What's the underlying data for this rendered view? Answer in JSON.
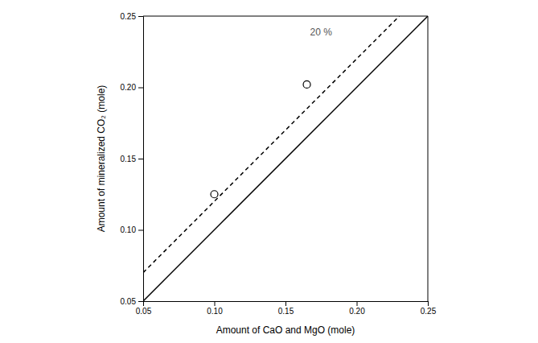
{
  "chart_data": {
    "type": "scatter",
    "xlabel": "Amount of CaO and MgO (mole)",
    "ylabel": "Amount of mineralized CO₂ (mole)",
    "xlim": [
      0.05,
      0.25
    ],
    "ylim": [
      0.05,
      0.25
    ],
    "xticks": [
      0.05,
      {
        "value": 0.1,
        "label": "0.10"
      },
      0.15,
      {
        "value": 0.2,
        "label": "0.20"
      },
      0.25
    ],
    "yticks": [
      0.05,
      {
        "value": 0.1,
        "label": "0.10"
      },
      0.15,
      {
        "value": 0.2,
        "label": "0.20"
      },
      0.25
    ],
    "grid": false,
    "series": [
      {
        "type": "line",
        "line_style": "solid",
        "color": "#000000",
        "x": [
          0.05,
          0.25
        ],
        "values": [
          0.05,
          0.25
        ]
      },
      {
        "type": "line",
        "line_style": "dashed",
        "color": "#000000",
        "x": [
          0.05,
          0.23
        ],
        "values": [
          0.07,
          0.25
        ]
      },
      {
        "type": "scatter",
        "marker": "circle",
        "color": "#000000",
        "x": [
          0.1,
          0.165
        ],
        "values": [
          0.125,
          0.202
        ]
      }
    ],
    "annotations": [
      {
        "text": "20 %",
        "x": 0.175,
        "y": 0.238,
        "color": "#555555"
      }
    ]
  }
}
